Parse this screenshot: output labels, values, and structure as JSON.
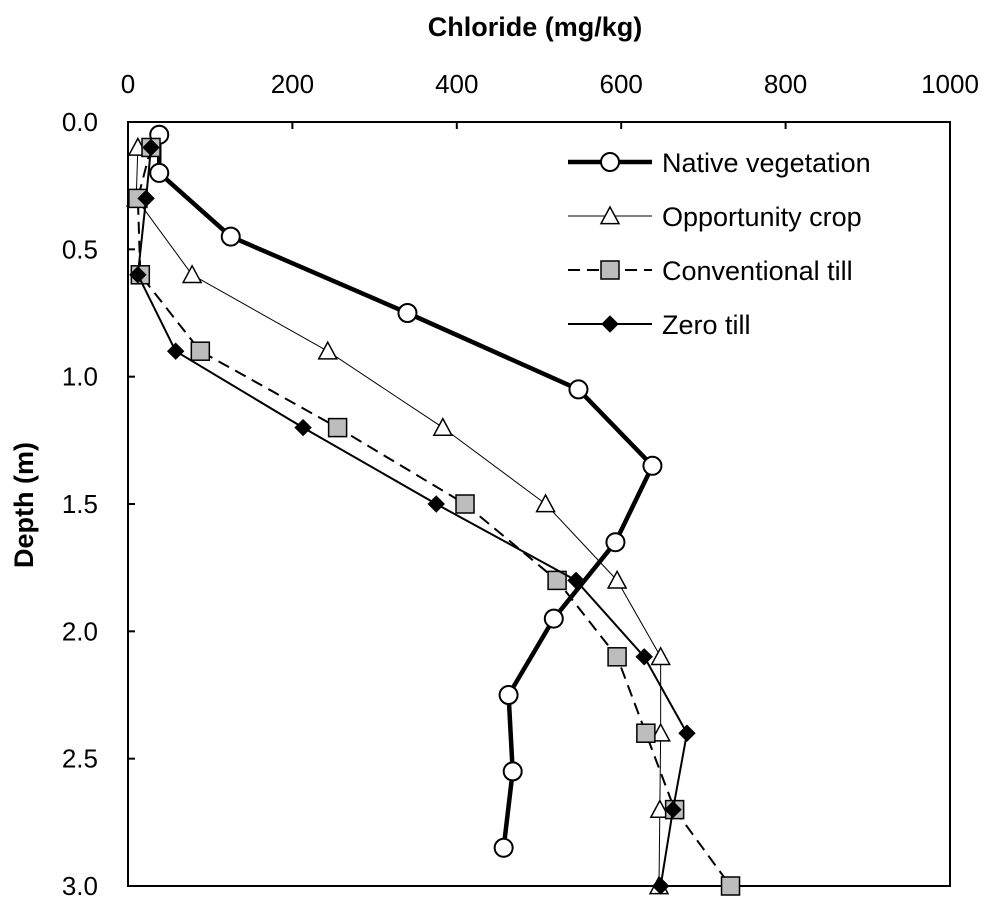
{
  "chart_data": {
    "type": "line",
    "xlabel": "Chloride (mg/kg)",
    "ylabel": "Depth (m)",
    "xlim": [
      0,
      1000
    ],
    "ylim": [
      0,
      3
    ],
    "y_inverted": true,
    "x_axis_position": "top",
    "x_ticks": [
      "0",
      "200",
      "400",
      "600",
      "800",
      "1000"
    ],
    "y_ticks": [
      "0.0",
      "0.5",
      "1.0",
      "1.5",
      "2.0",
      "2.5",
      "3.0"
    ],
    "grid": false,
    "legend_position": "top-right",
    "series": [
      {
        "name": "Native vegetation",
        "marker": "circle",
        "line": "thick-solid",
        "points": [
          [
            38,
            0.05
          ],
          [
            38,
            0.2
          ],
          [
            125,
            0.45
          ],
          [
            340,
            0.75
          ],
          [
            548,
            1.05
          ],
          [
            638,
            1.35
          ],
          [
            593,
            1.65
          ],
          [
            518,
            1.95
          ],
          [
            463,
            2.25
          ],
          [
            468,
            2.55
          ],
          [
            457,
            2.85
          ]
        ]
      },
      {
        "name": "Opportunity crop",
        "marker": "triangle",
        "line": "thin-solid",
        "points": [
          [
            12,
            0.1
          ],
          [
            10,
            0.3
          ],
          [
            78,
            0.6
          ],
          [
            243,
            0.9
          ],
          [
            383,
            1.2
          ],
          [
            508,
            1.5
          ],
          [
            595,
            1.8
          ],
          [
            648,
            2.1
          ],
          [
            648,
            2.4
          ],
          [
            647,
            2.7
          ],
          [
            646,
            3.0
          ]
        ]
      },
      {
        "name": "Conventional till",
        "marker": "square",
        "line": "dashed",
        "points": [
          [
            28,
            0.1
          ],
          [
            12,
            0.3
          ],
          [
            15,
            0.6
          ],
          [
            88,
            0.9
          ],
          [
            255,
            1.2
          ],
          [
            410,
            1.5
          ],
          [
            522,
            1.8
          ],
          [
            595,
            2.1
          ],
          [
            630,
            2.4
          ],
          [
            665,
            2.7
          ],
          [
            733,
            3.0
          ]
        ]
      },
      {
        "name": "Zero till",
        "marker": "diamond",
        "line": "solid",
        "points": [
          [
            28,
            0.1
          ],
          [
            22,
            0.3
          ],
          [
            12,
            0.6
          ],
          [
            58,
            0.9
          ],
          [
            213,
            1.2
          ],
          [
            375,
            1.5
          ],
          [
            545,
            1.8
          ],
          [
            628,
            2.1
          ],
          [
            680,
            2.4
          ],
          [
            663,
            2.7
          ],
          [
            648,
            3.0
          ]
        ]
      }
    ]
  }
}
